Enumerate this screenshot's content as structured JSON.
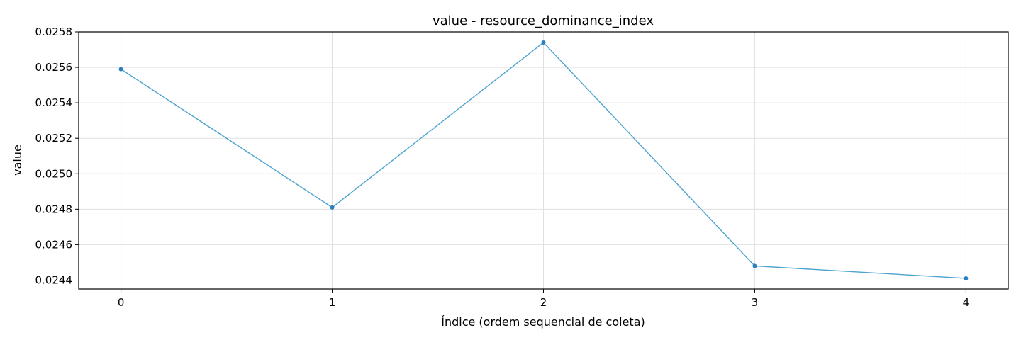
{
  "chart_data": {
    "type": "line",
    "title": "value - resource_dominance_index",
    "xlabel": "Índice (ordem sequencial de coleta)",
    "ylabel": "value",
    "x": [
      0,
      1,
      2,
      3,
      4
    ],
    "x_tick_labels": [
      "0",
      "1",
      "2",
      "3",
      "4"
    ],
    "xlim": [
      -0.2,
      4.2
    ],
    "y_ticks": [
      0.0244,
      0.0246,
      0.0248,
      0.025,
      0.0252,
      0.0254,
      0.0256,
      0.0258
    ],
    "y_tick_labels": [
      "0.0244",
      "0.0246",
      "0.0248",
      "0.0250",
      "0.0252",
      "0.0254",
      "0.0256",
      "0.0258"
    ],
    "ylim": [
      0.02435,
      0.0258
    ],
    "series": [
      {
        "values": [
          0.02559,
          0.02481,
          0.02574,
          0.02448,
          0.02441
        ],
        "color": "#4da3d0",
        "marker_color": "#2a7fbf"
      }
    ],
    "grid": true,
    "legend": "none"
  }
}
